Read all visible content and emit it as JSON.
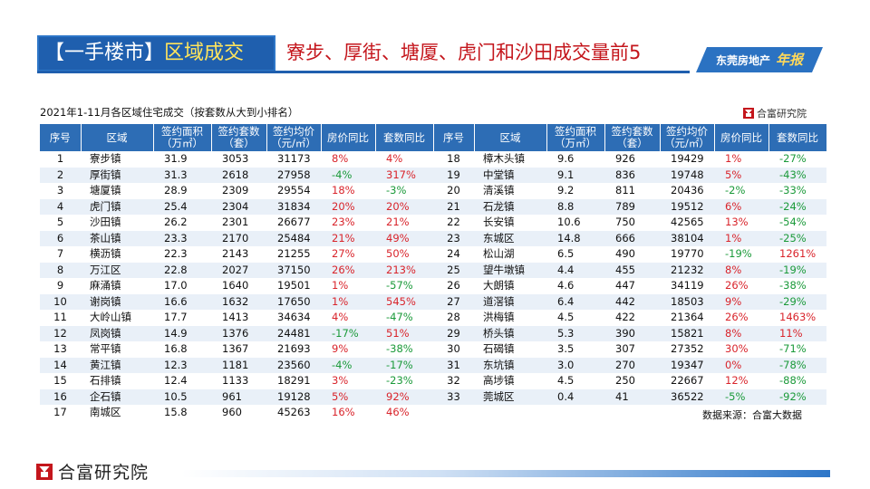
{
  "header": {
    "title_prefix": "【一手楼市】",
    "title_highlight": "区域成交",
    "subtitle": "寮步、厚街、塘厦、虎门和沙田成交量前5",
    "badge_text": "东莞房地产",
    "badge_script": "年报"
  },
  "table": {
    "caption": "2021年1-11月各区域住宅成交（按套数从大到小排名）",
    "brand": "合富研究院",
    "headers": {
      "index": "序号",
      "area": "区域",
      "sq_line1": "签约面积",
      "sq_line2": "（万㎡）",
      "cnt_line1": "签约套数",
      "cnt_line2": "（套）",
      "avg_line1": "签约均价",
      "avg_line2": "（元/㎡）",
      "price_yoy": "房价同比",
      "sets_yoy": "套数同比"
    },
    "left_rows": [
      {
        "idx": "1",
        "area": "寮步镇",
        "sq": "31.9",
        "cnt": "3053",
        "avg": "31173",
        "price": "8%",
        "sets": "4%"
      },
      {
        "idx": "2",
        "area": "厚街镇",
        "sq": "31.3",
        "cnt": "2618",
        "avg": "27958",
        "price": "-4%",
        "sets": "317%"
      },
      {
        "idx": "3",
        "area": "塘厦镇",
        "sq": "28.9",
        "cnt": "2309",
        "avg": "29554",
        "price": "18%",
        "sets": "-3%"
      },
      {
        "idx": "4",
        "area": "虎门镇",
        "sq": "25.4",
        "cnt": "2304",
        "avg": "31834",
        "price": "20%",
        "sets": "20%"
      },
      {
        "idx": "5",
        "area": "沙田镇",
        "sq": "26.2",
        "cnt": "2301",
        "avg": "26677",
        "price": "23%",
        "sets": "21%"
      },
      {
        "idx": "6",
        "area": "茶山镇",
        "sq": "23.3",
        "cnt": "2170",
        "avg": "25484",
        "price": "21%",
        "sets": "49%"
      },
      {
        "idx": "7",
        "area": "横沥镇",
        "sq": "22.3",
        "cnt": "2143",
        "avg": "21255",
        "price": "27%",
        "sets": "50%"
      },
      {
        "idx": "8",
        "area": "万江区",
        "sq": "22.8",
        "cnt": "2027",
        "avg": "37150",
        "price": "26%",
        "sets": "213%"
      },
      {
        "idx": "9",
        "area": "麻涌镇",
        "sq": "17.0",
        "cnt": "1640",
        "avg": "19501",
        "price": "1%",
        "sets": "-57%"
      },
      {
        "idx": "10",
        "area": "谢岗镇",
        "sq": "16.6",
        "cnt": "1632",
        "avg": "17650",
        "price": "1%",
        "sets": "545%"
      },
      {
        "idx": "11",
        "area": "大岭山镇",
        "sq": "17.7",
        "cnt": "1413",
        "avg": "34634",
        "price": "4%",
        "sets": "-47%"
      },
      {
        "idx": "12",
        "area": "凤岗镇",
        "sq": "14.9",
        "cnt": "1376",
        "avg": "24481",
        "price": "-17%",
        "sets": "51%"
      },
      {
        "idx": "13",
        "area": "常平镇",
        "sq": "16.8",
        "cnt": "1367",
        "avg": "21693",
        "price": "9%",
        "sets": "-38%"
      },
      {
        "idx": "14",
        "area": "黄江镇",
        "sq": "12.3",
        "cnt": "1181",
        "avg": "23560",
        "price": "-4%",
        "sets": "-17%"
      },
      {
        "idx": "15",
        "area": "石排镇",
        "sq": "12.4",
        "cnt": "1133",
        "avg": "18291",
        "price": "3%",
        "sets": "-23%"
      },
      {
        "idx": "16",
        "area": "企石镇",
        "sq": "10.5",
        "cnt": "961",
        "avg": "19128",
        "price": "5%",
        "sets": "92%"
      },
      {
        "idx": "17",
        "area": "南城区",
        "sq": "15.8",
        "cnt": "960",
        "avg": "45263",
        "price": "16%",
        "sets": "46%"
      }
    ],
    "right_rows": [
      {
        "idx": "18",
        "area": "樟木头镇",
        "sq": "9.6",
        "cnt": "926",
        "avg": "19429",
        "price": "1%",
        "sets": "-27%"
      },
      {
        "idx": "19",
        "area": "中堂镇",
        "sq": "9.1",
        "cnt": "836",
        "avg": "19748",
        "price": "5%",
        "sets": "-43%"
      },
      {
        "idx": "20",
        "area": "清溪镇",
        "sq": "9.2",
        "cnt": "811",
        "avg": "20436",
        "price": "-2%",
        "sets": "-33%"
      },
      {
        "idx": "21",
        "area": "石龙镇",
        "sq": "8.8",
        "cnt": "789",
        "avg": "19512",
        "price": "6%",
        "sets": "-24%"
      },
      {
        "idx": "22",
        "area": "长安镇",
        "sq": "10.6",
        "cnt": "750",
        "avg": "42565",
        "price": "13%",
        "sets": "-54%"
      },
      {
        "idx": "23",
        "area": "东城区",
        "sq": "14.8",
        "cnt": "666",
        "avg": "38104",
        "price": "1%",
        "sets": "-25%"
      },
      {
        "idx": "24",
        "area": "松山湖",
        "sq": "6.5",
        "cnt": "490",
        "avg": "19770",
        "price": "-19%",
        "sets": "1261%"
      },
      {
        "idx": "25",
        "area": "望牛墩镇",
        "sq": "4.4",
        "cnt": "455",
        "avg": "21232",
        "price": "8%",
        "sets": "-19%"
      },
      {
        "idx": "26",
        "area": "大朗镇",
        "sq": "4.6",
        "cnt": "447",
        "avg": "34119",
        "price": "26%",
        "sets": "-38%"
      },
      {
        "idx": "27",
        "area": "道滘镇",
        "sq": "6.4",
        "cnt": "442",
        "avg": "18503",
        "price": "9%",
        "sets": "-29%"
      },
      {
        "idx": "28",
        "area": "洪梅镇",
        "sq": "4.5",
        "cnt": "422",
        "avg": "21364",
        "price": "26%",
        "sets": "1463%"
      },
      {
        "idx": "29",
        "area": "桥头镇",
        "sq": "5.3",
        "cnt": "390",
        "avg": "15821",
        "price": "8%",
        "sets": "11%"
      },
      {
        "idx": "30",
        "area": "石碣镇",
        "sq": "3.5",
        "cnt": "307",
        "avg": "27352",
        "price": "30%",
        "sets": "-71%"
      },
      {
        "idx": "31",
        "area": "东坑镇",
        "sq": "3.0",
        "cnt": "270",
        "avg": "19347",
        "price": "0%",
        "sets": "-78%"
      },
      {
        "idx": "32",
        "area": "高埗镇",
        "sq": "4.5",
        "cnt": "250",
        "avg": "22667",
        "price": "12%",
        "sets": "-88%"
      },
      {
        "idx": "33",
        "area": "莞城区",
        "sq": "0.4",
        "cnt": "41",
        "avg": "36522",
        "price": "-5%",
        "sets": "-92%"
      }
    ],
    "source": "数据来源：合富大数据"
  },
  "footer": {
    "brand": "合富研究院"
  },
  "colors": {
    "header_blue": "#1f5fae",
    "table_header": "#2d6db5",
    "subtitle_red": "#c4161c",
    "positive": "#d9242b",
    "negative": "#1b9a3a"
  }
}
